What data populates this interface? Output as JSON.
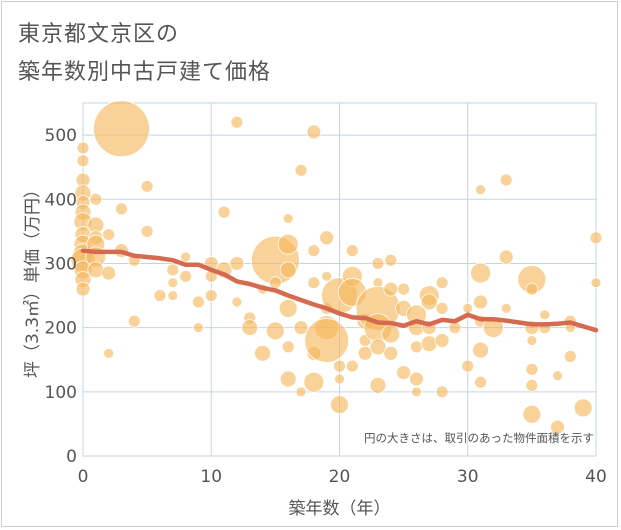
{
  "title_line1": "東京都文京区の",
  "title_line2": "築年数別中古戸建て価格",
  "chart_data": {
    "type": "scatter",
    "xlabel": "築年数（年）",
    "ylabel": "坪（3.3㎡）単価（万円）",
    "xlim": [
      0,
      40
    ],
    "ylim": [
      0,
      550
    ],
    "xticks": [
      0,
      10,
      20,
      30,
      40
    ],
    "yticks": [
      0,
      100,
      200,
      300,
      400,
      500
    ],
    "grid": true,
    "note": "円の大きさは、取引のあった物件面積を示す",
    "colors": {
      "bubble": "#f5b65b",
      "trend": "#d46a4f",
      "grid": "#c8d3e0"
    },
    "series": [
      {
        "type": "scatter",
        "points": [
          [
            3,
            510,
            28
          ],
          [
            0,
            480,
            6
          ],
          [
            0,
            460,
            6
          ],
          [
            0,
            430,
            7
          ],
          [
            0,
            410,
            8
          ],
          [
            0,
            395,
            7
          ],
          [
            0,
            380,
            8
          ],
          [
            0,
            365,
            9
          ],
          [
            0,
            345,
            8
          ],
          [
            0,
            330,
            9
          ],
          [
            0,
            315,
            10
          ],
          [
            0,
            305,
            12
          ],
          [
            0,
            290,
            9
          ],
          [
            0,
            275,
            8
          ],
          [
            0,
            260,
            7
          ],
          [
            1,
            400,
            6
          ],
          [
            1,
            360,
            8
          ],
          [
            1,
            340,
            7
          ],
          [
            1,
            330,
            9
          ],
          [
            1,
            310,
            10
          ],
          [
            1,
            290,
            8
          ],
          [
            2,
            345,
            6
          ],
          [
            2,
            285,
            7
          ],
          [
            2,
            160,
            5
          ],
          [
            3,
            385,
            6
          ],
          [
            3,
            320,
            7
          ],
          [
            5,
            420,
            6
          ],
          [
            5,
            350,
            6
          ],
          [
            4,
            305,
            6
          ],
          [
            4,
            210,
            6
          ],
          [
            6,
            250,
            6
          ],
          [
            7,
            290,
            6
          ],
          [
            7,
            270,
            5
          ],
          [
            7,
            250,
            5
          ],
          [
            8,
            310,
            5
          ],
          [
            8,
            280,
            6
          ],
          [
            9,
            240,
            6
          ],
          [
            9,
            200,
            5
          ],
          [
            10,
            300,
            7
          ],
          [
            10,
            280,
            6
          ],
          [
            10,
            250,
            6
          ],
          [
            11,
            380,
            6
          ],
          [
            11,
            290,
            8
          ],
          [
            12,
            520,
            6
          ],
          [
            12,
            300,
            7
          ],
          [
            12,
            240,
            5
          ],
          [
            13,
            215,
            6
          ],
          [
            13,
            200,
            8
          ],
          [
            14,
            260,
            5
          ],
          [
            14,
            160,
            8
          ],
          [
            15,
            305,
            24
          ],
          [
            15,
            270,
            6
          ],
          [
            15,
            195,
            9
          ],
          [
            16,
            370,
            5
          ],
          [
            16,
            330,
            10
          ],
          [
            16,
            290,
            8
          ],
          [
            16,
            230,
            9
          ],
          [
            16,
            170,
            6
          ],
          [
            16,
            120,
            8
          ],
          [
            17,
            445,
            6
          ],
          [
            17,
            200,
            7
          ],
          [
            17,
            100,
            5
          ],
          [
            18,
            505,
            7
          ],
          [
            18,
            320,
            6
          ],
          [
            18,
            270,
            6
          ],
          [
            18,
            160,
            7
          ],
          [
            18,
            115,
            10
          ],
          [
            19,
            340,
            7
          ],
          [
            19,
            280,
            5
          ],
          [
            19,
            230,
            6
          ],
          [
            19,
            200,
            12
          ],
          [
            19,
            180,
            22
          ],
          [
            20,
            250,
            18
          ],
          [
            20,
            140,
            6
          ],
          [
            20,
            120,
            5
          ],
          [
            20,
            80,
            9
          ],
          [
            21,
            320,
            6
          ],
          [
            21,
            280,
            10
          ],
          [
            21,
            255,
            14
          ],
          [
            21,
            140,
            6
          ],
          [
            22,
            210,
            8
          ],
          [
            22,
            180,
            6
          ],
          [
            22,
            160,
            7
          ],
          [
            23,
            300,
            6
          ],
          [
            23,
            270,
            5
          ],
          [
            23,
            230,
            22
          ],
          [
            23,
            200,
            14
          ],
          [
            23,
            170,
            8
          ],
          [
            23,
            110,
            8
          ],
          [
            24,
            305,
            6
          ],
          [
            24,
            260,
            7
          ],
          [
            24,
            190,
            9
          ],
          [
            24,
            160,
            7
          ],
          [
            25,
            260,
            6
          ],
          [
            25,
            230,
            8
          ],
          [
            25,
            130,
            7
          ],
          [
            26,
            220,
            10
          ],
          [
            26,
            200,
            8
          ],
          [
            26,
            170,
            6
          ],
          [
            26,
            120,
            7
          ],
          [
            26,
            100,
            5
          ],
          [
            27,
            250,
            10
          ],
          [
            27,
            240,
            8
          ],
          [
            27,
            200,
            7
          ],
          [
            27,
            175,
            8
          ],
          [
            28,
            270,
            6
          ],
          [
            28,
            230,
            6
          ],
          [
            28,
            180,
            7
          ],
          [
            28,
            100,
            6
          ],
          [
            29,
            200,
            6
          ],
          [
            30,
            230,
            5
          ],
          [
            30,
            140,
            6
          ],
          [
            31,
            415,
            5
          ],
          [
            31,
            285,
            10
          ],
          [
            31,
            240,
            7
          ],
          [
            31,
            210,
            6
          ],
          [
            31,
            165,
            8
          ],
          [
            31,
            115,
            6
          ],
          [
            32,
            200,
            10
          ],
          [
            33,
            430,
            6
          ],
          [
            33,
            310,
            7
          ],
          [
            33,
            230,
            5
          ],
          [
            35,
            275,
            14
          ],
          [
            35,
            260,
            6
          ],
          [
            35,
            200,
            7
          ],
          [
            35,
            180,
            5
          ],
          [
            35,
            135,
            6
          ],
          [
            35,
            110,
            6
          ],
          [
            35,
            65,
            9
          ],
          [
            36,
            220,
            5
          ],
          [
            36,
            200,
            6
          ],
          [
            37,
            125,
            5
          ],
          [
            37,
            45,
            7
          ],
          [
            38,
            210,
            6
          ],
          [
            38,
            200,
            5
          ],
          [
            38,
            155,
            6
          ],
          [
            39,
            75,
            9
          ],
          [
            40,
            340,
            6
          ],
          [
            40,
            270,
            5
          ]
        ]
      },
      {
        "type": "line",
        "points": [
          [
            0,
            320
          ],
          [
            1,
            318
          ],
          [
            2,
            318
          ],
          [
            3,
            318
          ],
          [
            4,
            312
          ],
          [
            5,
            310
          ],
          [
            6,
            308
          ],
          [
            7,
            305
          ],
          [
            8,
            298
          ],
          [
            9,
            298
          ],
          [
            10,
            290
          ],
          [
            11,
            283
          ],
          [
            12,
            272
          ],
          [
            13,
            268
          ],
          [
            14,
            262
          ],
          [
            15,
            258
          ],
          [
            16,
            250
          ],
          [
            17,
            243
          ],
          [
            18,
            236
          ],
          [
            19,
            230
          ],
          [
            20,
            222
          ],
          [
            21,
            216
          ],
          [
            22,
            215
          ],
          [
            23,
            208
          ],
          [
            24,
            207
          ],
          [
            25,
            203
          ],
          [
            26,
            210
          ],
          [
            27,
            205
          ],
          [
            28,
            212
          ],
          [
            29,
            210
          ],
          [
            30,
            220
          ],
          [
            31,
            213
          ],
          [
            32,
            213
          ],
          [
            33,
            211
          ],
          [
            34,
            208
          ],
          [
            35,
            205
          ],
          [
            36,
            205
          ],
          [
            37,
            206
          ],
          [
            38,
            208
          ],
          [
            39,
            202
          ],
          [
            40,
            196
          ]
        ]
      }
    ]
  }
}
